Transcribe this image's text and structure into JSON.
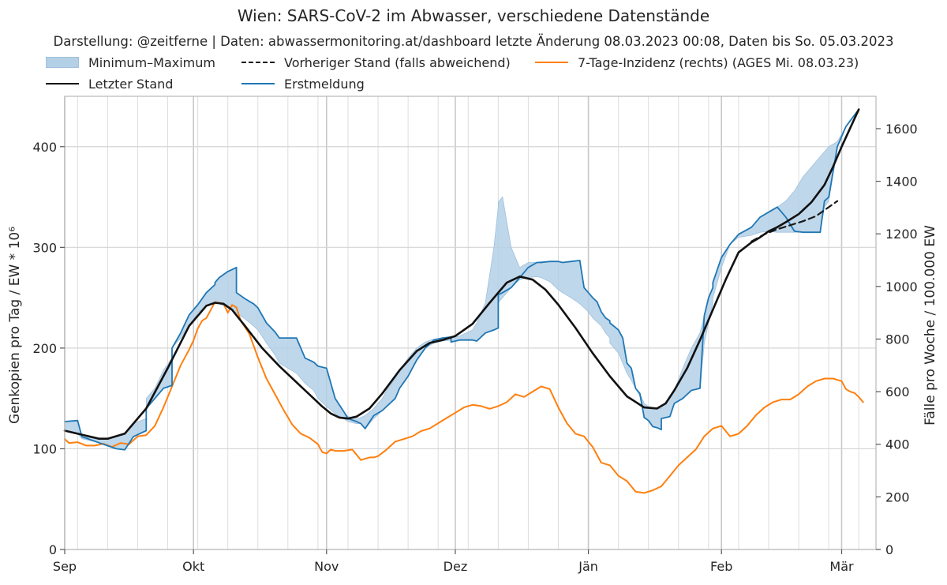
{
  "chart_data": {
    "type": "line",
    "title": "Wien: SARS-CoV-2 im Abwasser, verschiedene Datenstände",
    "subtitle": "Darstellung: @zeitferne | Daten: abwassermonitoring.at/dashboard letzte Änderung 08.03.2023 00:08, Daten bis So. 05.03.2023",
    "ylabel": "Genkopien pro Tag / EW * 10⁶",
    "ylabel_right": "Fälle pro Woche / 100.000 EW",
    "ylim": [
      0,
      450
    ],
    "ylim_right": [
      0,
      1723
    ],
    "yticks": [
      0,
      100,
      200,
      300,
      400
    ],
    "yticks_right": [
      0,
      200,
      400,
      600,
      800,
      1000,
      1200,
      1400,
      1600
    ],
    "x_months": [
      {
        "label": "Sep",
        "day": 0
      },
      {
        "label": "Okt",
        "day": 30
      },
      {
        "label": "Nov",
        "day": 61
      },
      {
        "label": "Dez",
        "day": 91
      },
      {
        "label": "Jän",
        "day": 122
      },
      {
        "label": "Feb",
        "day": 153
      },
      {
        "label": "Mär",
        "day": 181
      }
    ],
    "x_range_days": [
      0,
      189
    ],
    "x_start_date": "2022-09-01",
    "grid": true,
    "legend_position": "top",
    "legend": [
      {
        "key": "band",
        "label": "Minimum–Maximum"
      },
      {
        "key": "letzter",
        "label": "Letzter Stand"
      },
      {
        "key": "vorheriger",
        "label": "Vorheriger Stand (falls abweichend)"
      },
      {
        "key": "erst",
        "label": "Erstmeldung"
      },
      {
        "key": "inzidenz",
        "label": "7-Tage-Inzidenz (rechts) (AGES Mi. 08.03.23)"
      }
    ],
    "series": [
      {
        "key": "letzter",
        "name": "Letzter Stand",
        "color": "#111111",
        "axis": "left",
        "x": [
          0,
          5,
          8,
          10,
          14,
          19,
          24,
          29,
          33,
          35,
          37,
          39,
          42,
          46,
          50,
          55,
          60,
          62,
          64,
          66,
          68,
          71,
          74,
          78,
          82,
          85,
          88,
          91,
          95,
          99,
          103,
          106,
          109,
          112,
          115,
          119,
          123,
          127,
          131,
          135,
          138,
          140,
          142,
          145,
          148,
          151,
          154,
          157,
          160,
          162,
          164,
          166,
          168,
          171,
          174,
          177,
          179,
          181,
          185
        ],
        "y": [
          118,
          113,
          110,
          110,
          115,
          140,
          180,
          222,
          242,
          245,
          244,
          238,
          222,
          200,
          182,
          162,
          142,
          135,
          131,
          130,
          132,
          140,
          155,
          178,
          197,
          205,
          208,
          212,
          224,
          245,
          265,
          271,
          268,
          258,
          243,
          220,
          195,
          172,
          152,
          141,
          140,
          145,
          158,
          180,
          208,
          238,
          268,
          295,
          305,
          310,
          316,
          320,
          325,
          333,
          345,
          362,
          380,
          400,
          437
        ]
      },
      {
        "key": "vorheriger",
        "name": "Vorheriger Stand (falls abweichend)",
        "color": "#1a1a1a",
        "axis": "left",
        "x": [
          160,
          163,
          166,
          169,
          172,
          175,
          178,
          180
        ],
        "y": [
          306,
          313,
          318,
          322,
          326,
          331,
          340,
          346
        ]
      },
      {
        "key": "erst",
        "name": "Erstmeldung",
        "color": "#1f77b4",
        "axis": "left",
        "x": [
          0,
          3,
          4,
          8,
          10,
          12,
          14,
          16,
          19,
          19,
          21,
          23,
          25,
          25,
          27,
          29,
          31,
          33,
          35,
          35,
          36,
          38,
          40,
          40,
          42,
          44,
          45,
          47,
          49,
          50,
          52,
          54,
          56,
          58,
          59,
          61,
          63,
          65,
          66,
          68,
          69,
          70,
          72,
          74,
          75,
          77,
          78,
          80,
          82,
          84,
          86,
          88,
          90,
          90,
          92,
          95,
          96,
          98,
          100,
          101,
          101,
          102,
          104,
          106,
          108,
          110,
          111,
          113,
          115,
          116,
          118,
          120,
          121,
          122,
          123,
          124,
          125,
          126,
          127,
          127,
          129,
          130,
          131,
          132,
          133,
          134,
          135,
          136,
          137,
          138,
          139,
          139,
          141,
          142,
          144,
          146,
          148,
          149,
          150,
          151,
          151,
          153,
          155,
          157,
          160,
          162,
          164,
          166,
          168,
          170,
          172,
          174,
          176,
          177,
          178,
          180,
          182,
          185
        ],
        "y": [
          127,
          128,
          112,
          106,
          103,
          100,
          99,
          112,
          118,
          140,
          150,
          160,
          163,
          200,
          215,
          233,
          243,
          255,
          263,
          265,
          270,
          276,
          280,
          255,
          249,
          244,
          240,
          225,
          216,
          210,
          210,
          210,
          190,
          186,
          182,
          180,
          150,
          137,
          130,
          127,
          125,
          120,
          133,
          138,
          142,
          150,
          160,
          172,
          188,
          200,
          208,
          210,
          211,
          206,
          208,
          208,
          207,
          215,
          218,
          220,
          253,
          255,
          260,
          270,
          280,
          285,
          285,
          286,
          286,
          285,
          286,
          287,
          260,
          255,
          250,
          246,
          236,
          230,
          227,
          225,
          218,
          210,
          185,
          180,
          160,
          155,
          131,
          128,
          122,
          121,
          119,
          130,
          132,
          145,
          150,
          158,
          160,
          232,
          250,
          260,
          265,
          290,
          303,
          313,
          320,
          330,
          335,
          340,
          330,
          316,
          315,
          315,
          315,
          346,
          350,
          400,
          420,
          437
        ]
      },
      {
        "key": "inzidenz",
        "name": "7-Tage-Inzidenz (rechts) (AGES Mi. 08.03.23)",
        "color": "#ff7f0e",
        "axis": "right",
        "x": [
          0,
          1,
          3,
          5,
          7,
          9,
          11,
          13,
          15,
          17,
          19,
          21,
          23,
          25,
          27,
          29,
          30,
          31,
          32,
          33,
          35,
          37,
          38,
          39,
          40,
          41,
          43,
          45,
          47,
          49,
          51,
          53,
          55,
          57,
          59,
          60,
          61,
          62,
          63,
          65,
          67,
          69,
          70,
          71,
          72,
          73,
          75,
          77,
          79,
          81,
          83,
          85,
          87,
          89,
          91,
          93,
          95,
          97,
          99,
          101,
          103,
          105,
          107,
          109,
          111,
          113,
          115,
          117,
          119,
          121,
          123,
          125,
          127,
          129,
          131,
          133,
          135,
          137,
          139,
          141,
          143,
          145,
          147,
          149,
          151,
          153,
          155,
          157,
          159,
          161,
          163,
          165,
          167,
          169,
          171,
          173,
          175,
          177,
          179,
          181,
          182,
          183,
          184,
          185,
          186
        ],
        "y": [
          420,
          405,
          408,
          395,
          395,
          402,
          390,
          405,
          400,
          430,
          435,
          470,
          540,
          620,
          700,
          760,
          795,
          840,
          870,
          880,
          940,
          935,
          900,
          930,
          920,
          870,
          820,
          730,
          650,
          590,
          530,
          475,
          440,
          425,
          400,
          370,
          365,
          380,
          375,
          375,
          380,
          340,
          345,
          350,
          350,
          355,
          380,
          410,
          420,
          430,
          450,
          460,
          480,
          500,
          520,
          540,
          550,
          545,
          535,
          545,
          560,
          590,
          580,
          600,
          620,
          610,
          540,
          480,
          440,
          430,
          390,
          330,
          320,
          280,
          260,
          220,
          215,
          225,
          240,
          280,
          320,
          350,
          380,
          430,
          460,
          470,
          430,
          440,
          470,
          510,
          540,
          560,
          570,
          570,
          590,
          620,
          640,
          650,
          650,
          640,
          610,
          600,
          595,
          580,
          560
        ]
      }
    ],
    "band": {
      "name": "Minimum–Maximum",
      "color": "#b4d0e6",
      "x": [
        0,
        3,
        4,
        8,
        10,
        12,
        14,
        16,
        19,
        19,
        21,
        23,
        25,
        25,
        27,
        29,
        31,
        33,
        35,
        35,
        36,
        38,
        40,
        40,
        42,
        44,
        45,
        47,
        49,
        50,
        52,
        54,
        56,
        58,
        59,
        61,
        63,
        65,
        66,
        68,
        69,
        70,
        72,
        74,
        75,
        77,
        78,
        80,
        82,
        84,
        86,
        88,
        90,
        90,
        92,
        95,
        96,
        98,
        100,
        101,
        101,
        102,
        104,
        106,
        108,
        110,
        111,
        113,
        115,
        116,
        118,
        120,
        121,
        122,
        123,
        124,
        125,
        126,
        127,
        127,
        129,
        130,
        131,
        132,
        133,
        134,
        135,
        136,
        137,
        138,
        139,
        139,
        141,
        142,
        144,
        146,
        148,
        149,
        150,
        151,
        151,
        153,
        155,
        157,
        160,
        162,
        164,
        166,
        168,
        170,
        172,
        174,
        176,
        177,
        178,
        180,
        182,
        185
      ],
      "low": [
        118,
        115,
        110,
        106,
        103,
        100,
        99,
        112,
        118,
        140,
        150,
        160,
        163,
        200,
        210,
        222,
        235,
        242,
        245,
        245,
        244,
        240,
        235,
        235,
        229,
        222,
        218,
        205,
        193,
        185,
        180,
        175,
        165,
        158,
        150,
        142,
        135,
        130,
        127,
        125,
        125,
        120,
        130,
        138,
        142,
        150,
        160,
        172,
        188,
        200,
        205,
        207,
        208,
        206,
        208,
        208,
        207,
        215,
        218,
        220,
        245,
        250,
        260,
        268,
        270,
        271,
        270,
        266,
        258,
        255,
        250,
        244,
        240,
        236,
        230,
        226,
        222,
        215,
        210,
        205,
        195,
        185,
        175,
        168,
        160,
        152,
        131,
        128,
        122,
        121,
        119,
        130,
        132,
        145,
        150,
        158,
        160,
        205,
        225,
        245,
        250,
        280,
        303,
        310,
        312,
        315,
        316,
        315,
        315,
        315,
        315,
        315,
        315,
        340,
        346,
        400,
        420,
        437
      ],
      "high": [
        127,
        128,
        112,
        110,
        110,
        112,
        115,
        125,
        130,
        150,
        160,
        178,
        190,
        200,
        215,
        233,
        243,
        255,
        263,
        265,
        270,
        276,
        280,
        255,
        249,
        244,
        240,
        225,
        216,
        210,
        210,
        210,
        190,
        186,
        182,
        180,
        150,
        137,
        132,
        130,
        131,
        133,
        140,
        150,
        158,
        170,
        178,
        190,
        200,
        206,
        209,
        210,
        211,
        210,
        212,
        218,
        225,
        245,
        300,
        340,
        345,
        350,
        300,
        280,
        285,
        285,
        286,
        286,
        286,
        285,
        286,
        287,
        260,
        255,
        250,
        246,
        236,
        230,
        227,
        225,
        218,
        210,
        185,
        180,
        160,
        155,
        145,
        142,
        141,
        140,
        140,
        142,
        150,
        158,
        180,
        200,
        215,
        232,
        250,
        260,
        265,
        290,
        303,
        313,
        320,
        330,
        335,
        340,
        346,
        356,
        370,
        380,
        390,
        395,
        400,
        405,
        420,
        437
      ]
    }
  }
}
